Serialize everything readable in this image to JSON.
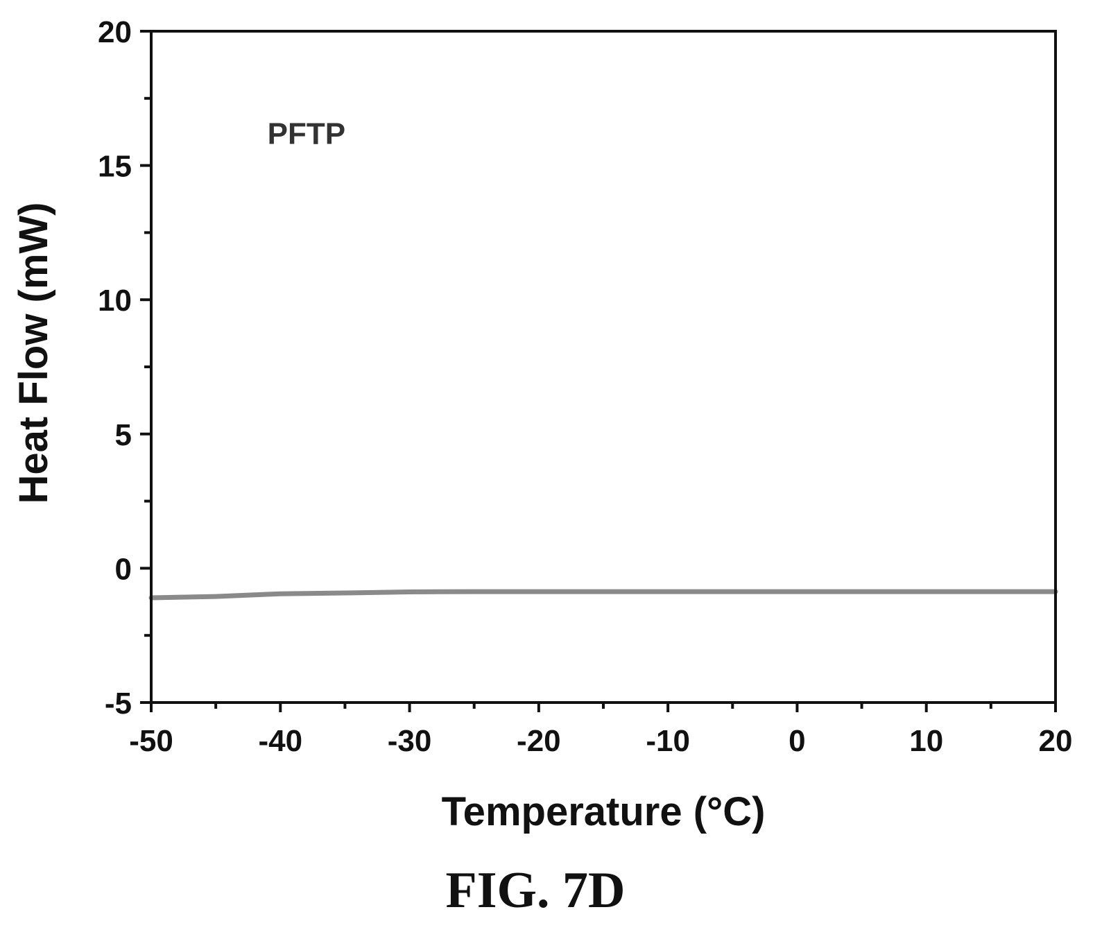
{
  "chart_data": {
    "type": "line",
    "xlabel": "Temperature (°C)",
    "ylabel": "Heat Flow (mW)",
    "xlim": [
      -50,
      20
    ],
    "ylim": [
      -5,
      20
    ],
    "x_major_ticks": [
      "-50",
      "-40",
      "-30",
      "-20",
      "-10",
      "0",
      "10",
      "20"
    ],
    "y_major_ticks": [
      "-5",
      "0",
      "5",
      "10",
      "15",
      "20"
    ],
    "grid": false,
    "series": [
      {
        "name": "",
        "color": "#8a8a8a",
        "x": [
          -50,
          -45,
          -40,
          -35,
          -30,
          -25,
          -20,
          -10,
          0,
          10,
          20
        ],
        "y": [
          -1.1,
          -1.05,
          -0.95,
          -0.92,
          -0.88,
          -0.87,
          -0.87,
          -0.87,
          -0.87,
          -0.87,
          -0.87
        ]
      }
    ],
    "annotations": [
      {
        "text": "PFTP",
        "x": -41,
        "y": 15.8
      }
    ]
  },
  "caption": "FIG. 7D"
}
